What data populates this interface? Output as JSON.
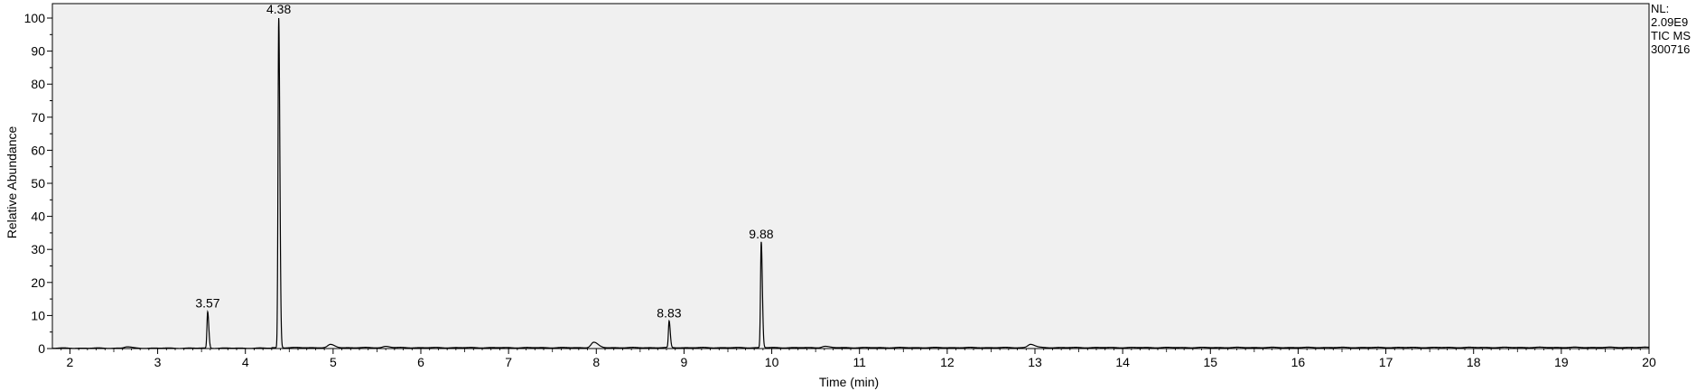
{
  "chart_data": {
    "type": "line",
    "xlabel": "Time (min)",
    "ylabel": "Relative Abundance",
    "xlim": [
      1.8,
      20
    ],
    "ylim": [
      0,
      100
    ],
    "x_ticks": [
      2,
      3,
      4,
      5,
      6,
      7,
      8,
      9,
      10,
      11,
      12,
      13,
      14,
      15,
      16,
      17,
      18,
      19,
      20
    ],
    "y_ticks": [
      0,
      10,
      20,
      30,
      40,
      50,
      60,
      70,
      80,
      90,
      100
    ],
    "grid": false,
    "line_color": "#000000",
    "plot_background": "#f0f0f0",
    "peaks": [
      {
        "x": 2.65,
        "y": 0.4
      },
      {
        "x": 3.57,
        "y": 11,
        "label": "3.57"
      },
      {
        "x": 4.38,
        "y": 100,
        "label": "4.38"
      },
      {
        "x": 4.97,
        "y": 0.9
      },
      {
        "x": 5.6,
        "y": 0.4
      },
      {
        "x": 7.97,
        "y": 1.6
      },
      {
        "x": 8.83,
        "y": 8,
        "label": "8.83"
      },
      {
        "x": 9.88,
        "y": 32,
        "label": "9.88"
      },
      {
        "x": 10.6,
        "y": 0.4
      },
      {
        "x": 12.95,
        "y": 1.0
      }
    ],
    "info_lines": [
      "NL:",
      "2.09E9",
      "TIC  MS",
      "300716"
    ]
  }
}
